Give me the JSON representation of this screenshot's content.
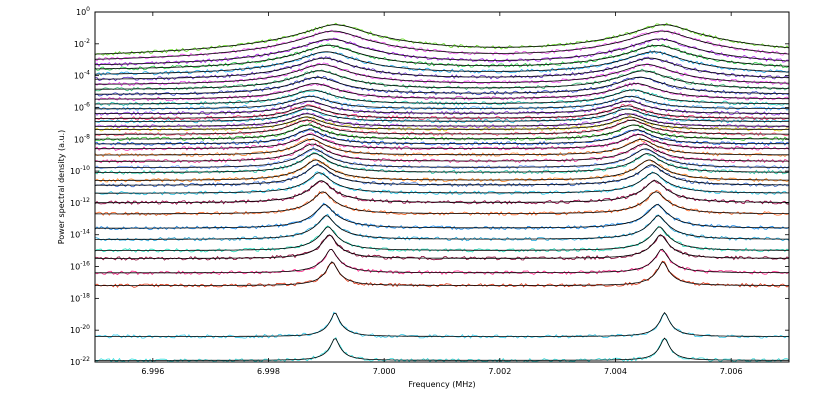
{
  "chart_data": {
    "type": "line",
    "title": "",
    "xlabel": "Frequency (MHz)",
    "ylabel": "Power spectral density (a.u.)",
    "yscale": "log",
    "xlim": [
      6.995,
      7.007
    ],
    "ylim_exponents": [
      -22,
      0
    ],
    "grid": false,
    "legend": "none",
    "x_ticks": [
      {
        "value": 6.996,
        "label": "6.996"
      },
      {
        "value": 6.998,
        "label": "6.998"
      },
      {
        "value": 7.0,
        "label": "7.000"
      },
      {
        "value": 7.002,
        "label": "7.002"
      },
      {
        "value": 7.004,
        "label": "7.004"
      },
      {
        "value": 7.006,
        "label": "7.006"
      }
    ],
    "y_ticks": [
      {
        "exponent": 0,
        "base": "10",
        "exp": "0"
      },
      {
        "exponent": -2,
        "base": "10",
        "exp": "-2"
      },
      {
        "exponent": -4,
        "base": "10",
        "exp": "-4"
      },
      {
        "exponent": -6,
        "base": "10",
        "exp": "-6"
      },
      {
        "exponent": -8,
        "base": "10",
        "exp": "-8"
      },
      {
        "exponent": -10,
        "base": "10",
        "exp": "-10"
      },
      {
        "exponent": -12,
        "base": "10",
        "exp": "-12"
      },
      {
        "exponent": -14,
        "base": "10",
        "exp": "-14"
      },
      {
        "exponent": -16,
        "base": "10",
        "exp": "-16"
      },
      {
        "exponent": -18,
        "base": "10",
        "exp": "-18"
      },
      {
        "exponent": -20,
        "base": "10",
        "exp": "-20"
      },
      {
        "exponent": -22,
        "base": "10",
        "exp": "-22"
      }
    ],
    "fit_color": "#000000",
    "series": [
      {
        "peak1_freq": 6.99915,
        "peak2_freq": 7.00485,
        "baseline_log": -21.9,
        "peak_log": -20.5,
        "color": "#33dddd"
      },
      {
        "peak1_freq": 6.99915,
        "peak2_freq": 7.00485,
        "baseline_log": -20.4,
        "peak_log": -18.9,
        "color": "#33ccee"
      },
      {
        "peak1_freq": 6.9991,
        "peak2_freq": 7.00482,
        "baseline_log": -17.2,
        "peak_log": -15.7,
        "color": "#dd3311"
      },
      {
        "peak1_freq": 6.99908,
        "peak2_freq": 7.0048,
        "baseline_log": -16.4,
        "peak_log": -14.9,
        "color": "#ff2288"
      },
      {
        "peak1_freq": 6.99905,
        "peak2_freq": 7.00478,
        "baseline_log": -15.5,
        "peak_log": -14.0,
        "color": "#880033"
      },
      {
        "peak1_freq": 6.99903,
        "peak2_freq": 7.00476,
        "baseline_log": -15.0,
        "peak_log": -13.5,
        "color": "#22ddbb"
      },
      {
        "peak1_freq": 6.999,
        "peak2_freq": 7.00474,
        "baseline_log": -14.3,
        "peak_log": -12.8,
        "color": "#22aadd"
      },
      {
        "peak1_freq": 6.99897,
        "peak2_freq": 7.00472,
        "baseline_log": -13.6,
        "peak_log": -12.1,
        "color": "#1188ee"
      },
      {
        "peak1_freq": 6.99894,
        "peak2_freq": 7.0047,
        "baseline_log": -12.7,
        "peak_log": -11.3,
        "color": "#ff6622"
      },
      {
        "peak1_freq": 6.99891,
        "peak2_freq": 7.00468,
        "baseline_log": -12.0,
        "peak_log": -10.6,
        "color": "#990044"
      },
      {
        "peak1_freq": 6.99888,
        "peak2_freq": 7.00465,
        "baseline_log": -11.4,
        "peak_log": -10.1,
        "color": "#22ccee"
      },
      {
        "peak1_freq": 6.99885,
        "peak2_freq": 7.00462,
        "baseline_log": -10.9,
        "peak_log": -9.6,
        "color": "#3366cc"
      },
      {
        "peak1_freq": 6.99882,
        "peak2_freq": 7.00458,
        "baseline_log": -10.6,
        "peak_log": -9.3,
        "color": "#ff8822"
      },
      {
        "peak1_freq": 6.9988,
        "peak2_freq": 7.00455,
        "baseline_log": -10.1,
        "peak_log": -8.9,
        "color": "#22ccaa"
      },
      {
        "peak1_freq": 6.99878,
        "peak2_freq": 7.00452,
        "baseline_log": -9.8,
        "peak_log": -8.6,
        "color": "#6699ff"
      },
      {
        "peak1_freq": 6.99876,
        "peak2_freq": 7.00448,
        "baseline_log": -9.4,
        "peak_log": -8.3,
        "color": "#ee3399"
      },
      {
        "peak1_freq": 6.99874,
        "peak2_freq": 7.00444,
        "baseline_log": -9.0,
        "peak_log": -8.0,
        "color": "#ff8833"
      },
      {
        "peak1_freq": 6.99872,
        "peak2_freq": 7.0044,
        "baseline_log": -8.6,
        "peak_log": -7.7,
        "color": "#ee22aa"
      },
      {
        "peak1_freq": 6.9987,
        "peak2_freq": 7.00436,
        "baseline_log": -8.3,
        "peak_log": -7.4,
        "color": "#2266ee"
      },
      {
        "peak1_freq": 6.99868,
        "peak2_freq": 7.00432,
        "baseline_log": -8.0,
        "peak_log": -7.1,
        "color": "#33cc33"
      },
      {
        "peak1_freq": 6.99866,
        "peak2_freq": 7.00428,
        "baseline_log": -7.7,
        "peak_log": -6.8,
        "color": "#ff5577"
      },
      {
        "peak1_freq": 6.99866,
        "peak2_freq": 7.00425,
        "baseline_log": -7.4,
        "peak_log": -6.6,
        "color": "#ddcc22"
      },
      {
        "peak1_freq": 6.99866,
        "peak2_freq": 7.00422,
        "baseline_log": -7.2,
        "peak_log": -6.4,
        "color": "#aa44ee"
      },
      {
        "peak1_freq": 6.99866,
        "peak2_freq": 7.0042,
        "baseline_log": -6.9,
        "peak_log": -6.1,
        "color": "#22bbdd"
      },
      {
        "peak1_freq": 6.99868,
        "peak2_freq": 7.0042,
        "baseline_log": -6.7,
        "peak_log": -5.9,
        "color": "#ff3377"
      },
      {
        "peak1_freq": 6.9987,
        "peak2_freq": 7.00422,
        "baseline_log": -6.4,
        "peak_log": -5.6,
        "color": "#8833dd"
      },
      {
        "peak1_freq": 6.99872,
        "peak2_freq": 7.00425,
        "baseline_log": -6.1,
        "peak_log": -5.3,
        "color": "#44aaff"
      },
      {
        "peak1_freq": 6.99876,
        "peak2_freq": 7.0043,
        "baseline_log": -5.8,
        "peak_log": -4.9,
        "color": "#22ccbb"
      },
      {
        "peak1_freq": 6.9988,
        "peak2_freq": 7.00436,
        "baseline_log": -5.5,
        "peak_log": -4.5,
        "color": "#dd33cc"
      },
      {
        "peak1_freq": 6.99884,
        "peak2_freq": 7.00442,
        "baseline_log": -5.2,
        "peak_log": -4.1,
        "color": "#3344cc"
      },
      {
        "peak1_freq": 6.99888,
        "peak2_freq": 7.00448,
        "baseline_log": -4.9,
        "peak_log": -3.7,
        "color": "#33bb77"
      },
      {
        "peak1_freq": 6.99892,
        "peak2_freq": 7.00454,
        "baseline_log": -4.6,
        "peak_log": -3.3,
        "color": "#ee44ee"
      },
      {
        "peak1_freq": 6.99896,
        "peak2_freq": 7.0046,
        "baseline_log": -4.3,
        "peak_log": -2.9,
        "color": "#6633cc"
      },
      {
        "peak1_freq": 6.999,
        "peak2_freq": 7.00466,
        "baseline_log": -4.0,
        "peak_log": -2.5,
        "color": "#22aaee"
      },
      {
        "peak1_freq": 6.99904,
        "peak2_freq": 7.00472,
        "baseline_log": -3.7,
        "peak_log": -2.1,
        "color": "#22cc44"
      },
      {
        "peak1_freq": 6.99908,
        "peak2_freq": 7.00476,
        "baseline_log": -3.5,
        "peak_log": -1.7,
        "color": "#aa22ee"
      },
      {
        "peak1_freq": 6.99912,
        "peak2_freq": 7.0048,
        "baseline_log": -3.3,
        "peak_log": -1.2,
        "color": "#ee55ee"
      },
      {
        "peak1_freq": 6.99916,
        "peak2_freq": 7.00484,
        "baseline_log": -3.1,
        "peak_log": -0.8,
        "color": "#66dd22"
      }
    ]
  }
}
